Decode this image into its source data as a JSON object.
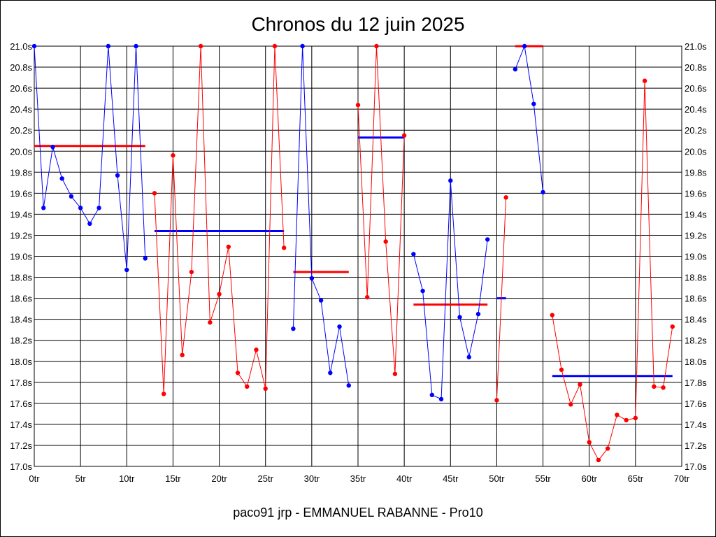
{
  "chart_data": {
    "type": "line",
    "title": "Chronos du 12 juin 2025",
    "footer": "paco91 jrp - EMMANUEL RABANNE - Pro10",
    "xlabel": "",
    "ylabel": "",
    "xlim": [
      0,
      70
    ],
    "ylim": [
      17.0,
      21.0
    ],
    "x_ticks": [
      0,
      5,
      10,
      15,
      20,
      25,
      30,
      35,
      40,
      45,
      50,
      55,
      60,
      65,
      70
    ],
    "x_tick_labels": [
      "0tr",
      "5tr",
      "10tr",
      "15tr",
      "20tr",
      "25tr",
      "30tr",
      "35tr",
      "40tr",
      "45tr",
      "50tr",
      "55tr",
      "60tr",
      "65tr",
      "70tr"
    ],
    "y_ticks": [
      17.0,
      17.2,
      17.4,
      17.6,
      17.8,
      18.0,
      18.2,
      18.4,
      18.6,
      18.8,
      19.0,
      19.2,
      19.4,
      19.6,
      19.8,
      20.0,
      20.2,
      20.4,
      20.6,
      20.8,
      21.0
    ],
    "y_tick_labels": [
      "17.0s",
      "17.2s",
      "17.4s",
      "17.6s",
      "17.8s",
      "18.0s",
      "18.2s",
      "18.4s",
      "18.6s",
      "18.8s",
      "19.0s",
      "19.2s",
      "19.4s",
      "19.6s",
      "19.8s",
      "20.0s",
      "20.2s",
      "20.4s",
      "20.6s",
      "20.8s",
      "21.0s"
    ],
    "y_axis_both_sides": true,
    "grid": true,
    "colors": {
      "blue": "#0000ff",
      "red": "#ff0000"
    },
    "series": [
      {
        "color": "blue",
        "x": [
          0,
          1,
          2,
          3,
          4,
          5,
          6,
          7,
          8,
          9,
          10,
          11,
          12
        ],
        "y": [
          21.0,
          19.46,
          20.04,
          19.74,
          19.57,
          19.46,
          19.31,
          19.46,
          21.0,
          19.77,
          18.87,
          21.0,
          18.98
        ]
      },
      {
        "color": "red",
        "x": [
          13,
          14,
          15,
          16,
          17,
          18,
          19,
          20,
          21,
          22,
          23,
          24,
          25,
          26,
          27
        ],
        "y": [
          19.6,
          17.69,
          19.96,
          18.06,
          18.85,
          21.0,
          18.37,
          18.64,
          19.09,
          17.89,
          17.76,
          18.11,
          17.74,
          21.0,
          19.08
        ]
      },
      {
        "color": "blue",
        "x": [
          28,
          29,
          30,
          31,
          32,
          33,
          34
        ],
        "y": [
          18.31,
          21.0,
          18.79,
          18.58,
          17.89,
          18.33,
          17.77
        ]
      },
      {
        "color": "red",
        "x": [
          35,
          36,
          37,
          38,
          39,
          40
        ],
        "y": [
          20.44,
          18.61,
          21.0,
          19.14,
          17.88,
          20.15
        ]
      },
      {
        "color": "blue",
        "x": [
          41,
          42,
          43,
          44,
          45,
          46,
          47,
          48,
          49
        ],
        "y": [
          19.02,
          18.67,
          17.68,
          17.64,
          19.72,
          18.42,
          18.04,
          18.45,
          19.16
        ]
      },
      {
        "color": "red",
        "x": [
          50,
          51
        ],
        "y": [
          17.63,
          19.56
        ]
      },
      {
        "color": "blue",
        "x": [
          52,
          53,
          54,
          55
        ],
        "y": [
          20.78,
          21.0,
          20.45,
          19.61
        ]
      },
      {
        "color": "red",
        "x": [
          56,
          57,
          58,
          59,
          60,
          61,
          62,
          63,
          64,
          65,
          66,
          67,
          68,
          69
        ],
        "y": [
          18.44,
          17.92,
          17.59,
          17.78,
          17.23,
          17.06,
          17.17,
          17.49,
          17.44,
          17.46,
          20.67,
          17.76,
          17.75,
          18.33
        ]
      }
    ],
    "averages": [
      {
        "color": "red",
        "x_start": 0,
        "x_end": 12,
        "y": 20.05
      },
      {
        "color": "blue",
        "x_start": 13,
        "x_end": 27,
        "y": 19.24
      },
      {
        "color": "red",
        "x_start": 28,
        "x_end": 34,
        "y": 18.85
      },
      {
        "color": "blue",
        "x_start": 35,
        "x_end": 40,
        "y": 20.13
      },
      {
        "color": "red",
        "x_start": 41,
        "x_end": 49,
        "y": 18.54
      },
      {
        "color": "blue",
        "x_start": 50,
        "x_end": 51,
        "y": 18.6
      },
      {
        "color": "red",
        "x_start": 52,
        "x_end": 55,
        "y": 21.0
      },
      {
        "color": "blue",
        "x_start": 56,
        "x_end": 69,
        "y": 17.86
      }
    ]
  }
}
